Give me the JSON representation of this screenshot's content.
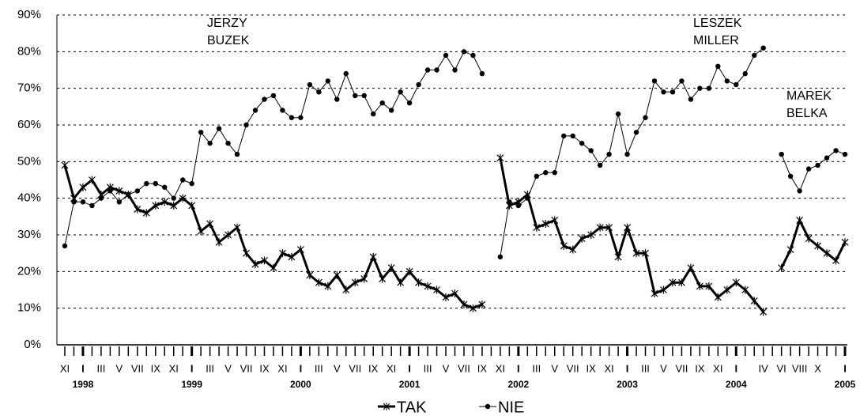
{
  "chart_data": {
    "type": "line",
    "categories": [
      "XI",
      null,
      "I",
      null,
      "III",
      null,
      "V",
      null,
      "VII",
      null,
      "IX",
      null,
      "XI",
      null,
      "I",
      null,
      "III",
      null,
      "V",
      null,
      "VII",
      null,
      "IX",
      null,
      "XI",
      null,
      "I",
      null,
      "III",
      null,
      "V",
      null,
      "VII",
      null,
      "IX",
      null,
      "XI",
      null,
      "I",
      null,
      "III",
      null,
      "V",
      null,
      "VII",
      null,
      "IX",
      null,
      "XI",
      null,
      "I",
      null,
      "III",
      null,
      "V",
      null,
      "VII",
      null,
      "IX",
      null,
      "XI",
      null,
      "I",
      null,
      "III",
      null,
      "V",
      null,
      "VII",
      null,
      "IX",
      null,
      "XI",
      null,
      "I",
      null,
      null,
      "IV",
      null,
      "VI",
      null,
      "VIII",
      null,
      "X",
      null,
      null,
      "I"
    ],
    "year_labels": [
      null,
      null,
      "1998",
      null,
      null,
      null,
      null,
      null,
      null,
      null,
      null,
      null,
      null,
      null,
      "1999",
      null,
      null,
      null,
      null,
      null,
      null,
      null,
      null,
      null,
      null,
      null,
      "2000",
      null,
      null,
      null,
      null,
      null,
      null,
      null,
      null,
      null,
      null,
      null,
      "2001",
      null,
      null,
      null,
      null,
      null,
      null,
      null,
      null,
      null,
      null,
      null,
      "2002",
      null,
      null,
      null,
      null,
      null,
      null,
      null,
      null,
      null,
      null,
      null,
      "2003",
      null,
      null,
      null,
      null,
      null,
      null,
      null,
      null,
      null,
      null,
      null,
      "2004",
      null,
      null,
      null,
      null,
      null,
      null,
      null,
      null,
      null,
      null,
      null,
      "2005"
    ],
    "series": [
      {
        "name": "TAK",
        "color": "#000000",
        "line_width": 3,
        "marker": "star",
        "values": [
          49,
          40,
          43,
          45,
          41,
          43,
          42,
          41,
          37,
          36,
          38,
          39,
          38,
          40,
          38,
          31,
          33,
          28,
          30,
          32,
          25,
          22,
          23,
          21,
          25,
          24,
          26,
          19,
          17,
          16,
          19,
          15,
          17,
          18,
          24,
          18,
          21,
          17,
          20,
          17,
          16,
          15,
          13,
          14,
          11,
          10,
          11,
          null,
          51,
          38,
          39,
          41,
          32,
          33,
          34,
          27,
          26,
          29,
          30,
          32,
          32,
          24,
          32,
          25,
          25,
          14,
          15,
          17,
          17,
          21,
          16,
          16,
          13,
          15,
          17,
          15,
          12,
          9,
          null,
          21,
          26,
          34,
          29,
          27,
          25,
          23,
          28
        ]
      },
      {
        "name": "NIE",
        "color": "#000000",
        "line_width": 1,
        "marker": "circle",
        "values": [
          27,
          39,
          39,
          38,
          40,
          42,
          39,
          41,
          42,
          44,
          44,
          43,
          40,
          45,
          44,
          58,
          55,
          59,
          55,
          52,
          60,
          64,
          67,
          68,
          64,
          62,
          62,
          71,
          69,
          72,
          67,
          74,
          68,
          68,
          63,
          66,
          64,
          69,
          66,
          71,
          75,
          75,
          79,
          75,
          80,
          79,
          74,
          null,
          24,
          39,
          38,
          40,
          46,
          47,
          47,
          57,
          57,
          55,
          53,
          49,
          52,
          63,
          52,
          58,
          62,
          72,
          69,
          69,
          72,
          67,
          70,
          70,
          76,
          72,
          71,
          74,
          79,
          81,
          null,
          52,
          46,
          42,
          48,
          49,
          51,
          53,
          52
        ]
      }
    ],
    "ylim": [
      0,
      90
    ],
    "yticks": [
      {
        "value": 0,
        "label": "0%"
      },
      {
        "value": 10,
        "label": "10%"
      },
      {
        "value": 20,
        "label": "20%"
      },
      {
        "value": 30,
        "label": "30%"
      },
      {
        "value": 40,
        "label": "40%"
      },
      {
        "value": 50,
        "label": "50%"
      },
      {
        "value": 60,
        "label": "60%"
      },
      {
        "value": 70,
        "label": "70%"
      },
      {
        "value": 80,
        "label": "80%"
      },
      {
        "value": 90,
        "label": "90%"
      }
    ],
    "grid": true,
    "legend": "bottom",
    "annotations": [
      {
        "lines": [
          "JERZY",
          "BUZEK"
        ]
      },
      {
        "lines": [
          "LESZEK",
          "MILLER"
        ]
      },
      {
        "lines": [
          "MAREK",
          "BELKA"
        ]
      }
    ]
  }
}
